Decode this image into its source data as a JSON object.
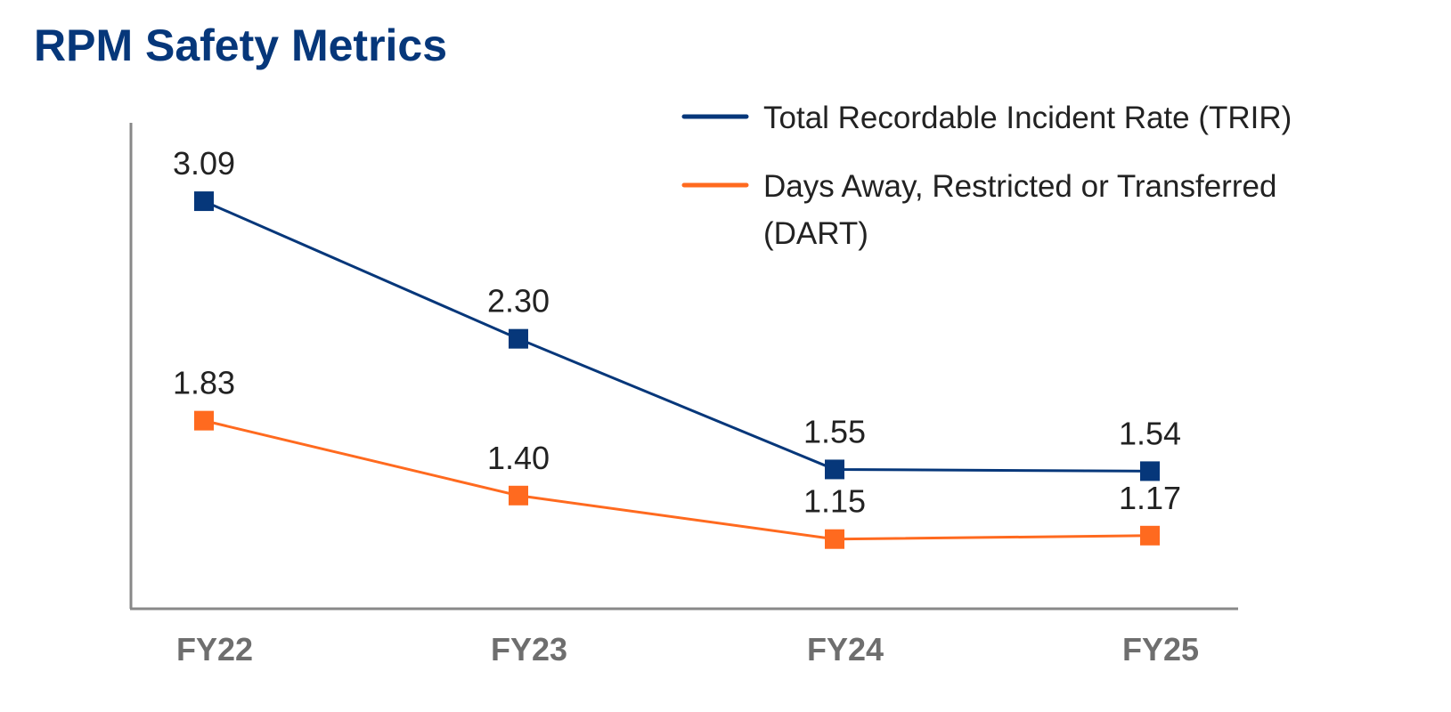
{
  "chart_data": {
    "type": "line",
    "title": "RPM Safety Metrics",
    "categories": [
      "FY22",
      "FY23",
      "FY24",
      "FY25"
    ],
    "series": [
      {
        "name": "Total Recordable Incident Rate (TRIR)",
        "values": [
          3.09,
          2.3,
          1.55,
          1.54
        ],
        "labels": [
          "3.09",
          "2.30",
          "1.55",
          "1.54"
        ],
        "color": "#06377a",
        "marker": "square"
      },
      {
        "name": "Days Away, Restricted or Transferred (DART)",
        "name_lines": [
          "Days Away, Restricted or Transferred",
          "(DART)"
        ],
        "values": [
          1.83,
          1.4,
          1.15,
          1.17
        ],
        "labels": [
          "1.83",
          "1.40",
          "1.15",
          "1.17"
        ],
        "color": "#ff6a1f",
        "marker": "square"
      }
    ],
    "xlabel": "",
    "ylabel": "",
    "ylim": [
      0.75,
      3.54
    ],
    "y_tick_labels": false,
    "grid": false,
    "legend_position": "top-right",
    "axis_color": "#888888"
  }
}
